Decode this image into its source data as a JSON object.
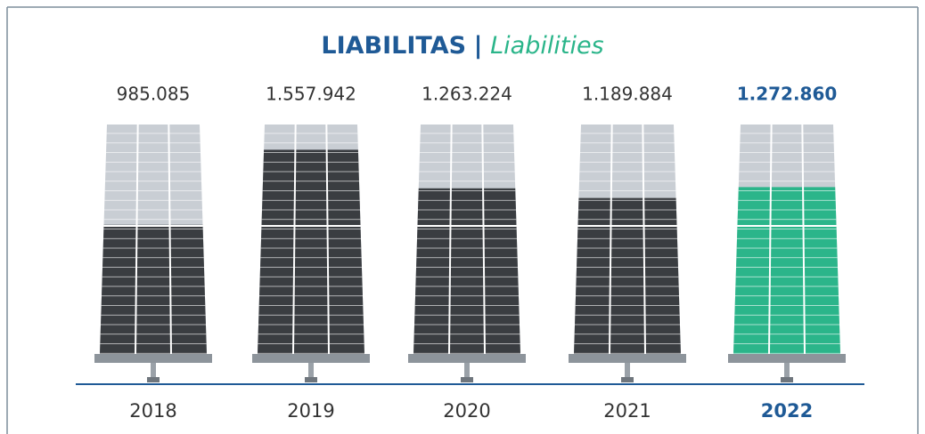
{
  "chart_data": {
    "type": "pictogram",
    "title": "LIABILITAS",
    "title_separator": "|",
    "subtitle": "Liabilities",
    "categories": [
      "2018",
      "2019",
      "2020",
      "2021",
      "2022"
    ],
    "values": [
      985085,
      1557942,
      1263224,
      1189884,
      1272860
    ],
    "value_labels": [
      "985.085",
      "1.557.942",
      "1.263.224",
      "1.189.884",
      "1.272.860"
    ],
    "ylim": [
      0,
      1750000
    ],
    "color": "#3a3d41",
    "highlight": "2022",
    "highlight_color": "#2bb58a",
    "highlight_text_color": "#1f5a96"
  }
}
